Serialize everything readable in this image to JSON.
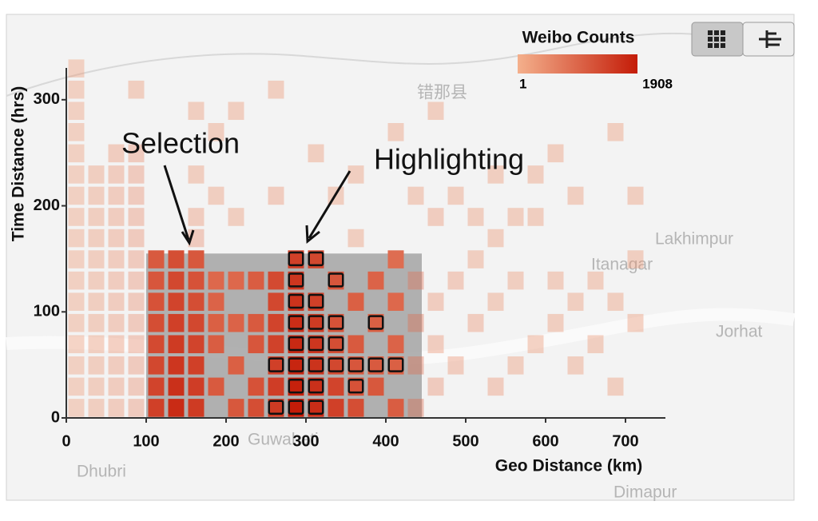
{
  "chart_data": {
    "type": "heatmap",
    "title": "Weibo Counts",
    "colorbar": {
      "min": 1,
      "max": 1908,
      "colors": [
        "#f4b08c",
        "#c41c08"
      ]
    },
    "xlabel": "Geo Distance (km)",
    "ylabel": "Time Distance (hrs)",
    "xlim": [
      0,
      750
    ],
    "xticks": [
      0,
      100,
      200,
      300,
      400,
      500,
      600,
      700
    ],
    "ylim": [
      0,
      330
    ],
    "yticks": [
      0,
      100,
      200,
      300
    ],
    "bin_size": [
      25,
      20
    ],
    "selection": {
      "x": [
        100,
        445
      ],
      "y": [
        0,
        155
      ]
    },
    "annotations": [
      "Selection",
      "Highlighting"
    ],
    "map_labels": [
      "错那县",
      "Lakhimpur",
      "Itanagar",
      "Jorhat",
      "Dhubri",
      "Guwahati",
      "Dimapur"
    ],
    "cells": [
      [
        0,
        0,
        3,
        false
      ],
      [
        0,
        20,
        3,
        false
      ],
      [
        0,
        40,
        3,
        false
      ],
      [
        0,
        60,
        3,
        false
      ],
      [
        0,
        80,
        3,
        false
      ],
      [
        0,
        100,
        3,
        false
      ],
      [
        0,
        120,
        3,
        false
      ],
      [
        0,
        140,
        3,
        false
      ],
      [
        0,
        160,
        3,
        false
      ],
      [
        0,
        180,
        3,
        false
      ],
      [
        0,
        200,
        3,
        false
      ],
      [
        0,
        220,
        3,
        false
      ],
      [
        0,
        240,
        3,
        false
      ],
      [
        0,
        260,
        3,
        false
      ],
      [
        0,
        280,
        3,
        false
      ],
      [
        0,
        300,
        3,
        false
      ],
      [
        0,
        320,
        3,
        false
      ],
      [
        25,
        0,
        4,
        false
      ],
      [
        25,
        20,
        4,
        false
      ],
      [
        25,
        40,
        4,
        false
      ],
      [
        25,
        60,
        4,
        false
      ],
      [
        25,
        80,
        4,
        false
      ],
      [
        25,
        100,
        4,
        false
      ],
      [
        25,
        120,
        4,
        false
      ],
      [
        25,
        140,
        4,
        false
      ],
      [
        25,
        160,
        4,
        false
      ],
      [
        25,
        180,
        4,
        false
      ],
      [
        25,
        200,
        4,
        false
      ],
      [
        25,
        220,
        4,
        false
      ],
      [
        50,
        0,
        5,
        false
      ],
      [
        50,
        20,
        5,
        false
      ],
      [
        50,
        40,
        5,
        false
      ],
      [
        50,
        60,
        5,
        false
      ],
      [
        50,
        80,
        5,
        false
      ],
      [
        50,
        100,
        5,
        false
      ],
      [
        50,
        120,
        5,
        false
      ],
      [
        50,
        140,
        5,
        false
      ],
      [
        50,
        160,
        5,
        false
      ],
      [
        50,
        180,
        5,
        false
      ],
      [
        50,
        200,
        5,
        false
      ],
      [
        50,
        220,
        5,
        false
      ],
      [
        50,
        240,
        5,
        false
      ],
      [
        75,
        0,
        6,
        false
      ],
      [
        75,
        20,
        6,
        false
      ],
      [
        75,
        40,
        6,
        false
      ],
      [
        75,
        60,
        6,
        false
      ],
      [
        75,
        80,
        6,
        false
      ],
      [
        75,
        100,
        6,
        false
      ],
      [
        75,
        120,
        6,
        false
      ],
      [
        75,
        140,
        6,
        false
      ],
      [
        75,
        160,
        6,
        false
      ],
      [
        75,
        180,
        6,
        false
      ],
      [
        75,
        200,
        6,
        false
      ],
      [
        75,
        220,
        6,
        false
      ],
      [
        75,
        240,
        6,
        false
      ],
      [
        75,
        300,
        4,
        false
      ],
      [
        100,
        0,
        300,
        false
      ],
      [
        100,
        20,
        250,
        false
      ],
      [
        100,
        40,
        200,
        false
      ],
      [
        100,
        60,
        180,
        false
      ],
      [
        100,
        80,
        150,
        false
      ],
      [
        100,
        100,
        120,
        false
      ],
      [
        100,
        120,
        100,
        false
      ],
      [
        100,
        140,
        80,
        false
      ],
      [
        125,
        0,
        900,
        false
      ],
      [
        125,
        20,
        700,
        false
      ],
      [
        125,
        40,
        500,
        false
      ],
      [
        125,
        60,
        400,
        false
      ],
      [
        125,
        80,
        300,
        false
      ],
      [
        125,
        100,
        250,
        false
      ],
      [
        125,
        120,
        200,
        false
      ],
      [
        125,
        140,
        150,
        false
      ],
      [
        150,
        0,
        400,
        false
      ],
      [
        150,
        20,
        350,
        false
      ],
      [
        150,
        40,
        300,
        false
      ],
      [
        150,
        60,
        250,
        false
      ],
      [
        150,
        80,
        200,
        false
      ],
      [
        150,
        100,
        150,
        false
      ],
      [
        150,
        120,
        120,
        false
      ],
      [
        150,
        140,
        90,
        false
      ],
      [
        150,
        160,
        6,
        false
      ],
      [
        150,
        180,
        5,
        false
      ],
      [
        150,
        220,
        4,
        false
      ],
      [
        150,
        280,
        4,
        false
      ],
      [
        175,
        20,
        80,
        false
      ],
      [
        175,
        60,
        70,
        false
      ],
      [
        175,
        80,
        60,
        false
      ],
      [
        175,
        100,
        50,
        false
      ],
      [
        175,
        120,
        40,
        false
      ],
      [
        175,
        200,
        4,
        false
      ],
      [
        175,
        260,
        4,
        false
      ],
      [
        200,
        0,
        90,
        false
      ],
      [
        200,
        40,
        60,
        false
      ],
      [
        200,
        80,
        50,
        false
      ],
      [
        200,
        120,
        40,
        false
      ],
      [
        200,
        180,
        4,
        false
      ],
      [
        200,
        280,
        4,
        false
      ],
      [
        225,
        0,
        150,
        false
      ],
      [
        225,
        20,
        120,
        false
      ],
      [
        225,
        60,
        100,
        false
      ],
      [
        225,
        80,
        80,
        false
      ],
      [
        225,
        120,
        70,
        false
      ],
      [
        250,
        0,
        400,
        true
      ],
      [
        250,
        20,
        350,
        false
      ],
      [
        250,
        40,
        300,
        true
      ],
      [
        250,
        60,
        280,
        false
      ],
      [
        250,
        80,
        250,
        false
      ],
      [
        250,
        100,
        200,
        false
      ],
      [
        250,
        120,
        180,
        false
      ],
      [
        250,
        200,
        5,
        false
      ],
      [
        250,
        300,
        4,
        false
      ],
      [
        275,
        0,
        1908,
        true
      ],
      [
        275,
        20,
        1500,
        true
      ],
      [
        275,
        40,
        1200,
        true
      ],
      [
        275,
        60,
        1000,
        true
      ],
      [
        275,
        80,
        800,
        true
      ],
      [
        275,
        100,
        600,
        true
      ],
      [
        275,
        120,
        500,
        true
      ],
      [
        275,
        140,
        300,
        true
      ],
      [
        300,
        0,
        800,
        true
      ],
      [
        300,
        20,
        700,
        true
      ],
      [
        300,
        40,
        600,
        true
      ],
      [
        300,
        60,
        500,
        true
      ],
      [
        300,
        80,
        400,
        true
      ],
      [
        300,
        100,
        300,
        true
      ],
      [
        300,
        140,
        200,
        true
      ],
      [
        300,
        240,
        4,
        false
      ],
      [
        325,
        0,
        300,
        false
      ],
      [
        325,
        20,
        250,
        false
      ],
      [
        325,
        40,
        200,
        true
      ],
      [
        325,
        60,
        150,
        true
      ],
      [
        325,
        80,
        120,
        true
      ],
      [
        325,
        120,
        100,
        true
      ],
      [
        325,
        200,
        4,
        false
      ],
      [
        350,
        0,
        150,
        false
      ],
      [
        350,
        20,
        120,
        true
      ],
      [
        350,
        40,
        100,
        true
      ],
      [
        350,
        60,
        80,
        false
      ],
      [
        350,
        100,
        60,
        false
      ],
      [
        350,
        160,
        4,
        false
      ],
      [
        350,
        220,
        4,
        false
      ],
      [
        375,
        20,
        90,
        false
      ],
      [
        375,
        40,
        80,
        true
      ],
      [
        375,
        80,
        60,
        true
      ],
      [
        375,
        120,
        50,
        false
      ],
      [
        400,
        0,
        70,
        false
      ],
      [
        400,
        40,
        60,
        true
      ],
      [
        400,
        60,
        50,
        false
      ],
      [
        400,
        100,
        40,
        false
      ],
      [
        400,
        140,
        30,
        false
      ],
      [
        400,
        260,
        4,
        false
      ],
      [
        425,
        0,
        40,
        false
      ],
      [
        425,
        40,
        30,
        false
      ],
      [
        425,
        80,
        30,
        false
      ],
      [
        425,
        120,
        25,
        false
      ],
      [
        425,
        200,
        4,
        false
      ],
      [
        450,
        20,
        6,
        false
      ],
      [
        450,
        60,
        5,
        false
      ],
      [
        450,
        100,
        5,
        false
      ],
      [
        450,
        180,
        5,
        false
      ],
      [
        450,
        280,
        4,
        false
      ],
      [
        475,
        40,
        5,
        false
      ],
      [
        475,
        120,
        5,
        false
      ],
      [
        475,
        200,
        4,
        false
      ],
      [
        500,
        80,
        5,
        false
      ],
      [
        500,
        140,
        4,
        false
      ],
      [
        500,
        180,
        4,
        false
      ],
      [
        525,
        20,
        5,
        false
      ],
      [
        525,
        100,
        4,
        false
      ],
      [
        525,
        160,
        4,
        false
      ],
      [
        525,
        220,
        4,
        false
      ],
      [
        550,
        40,
        4,
        false
      ],
      [
        550,
        120,
        4,
        false
      ],
      [
        550,
        180,
        4,
        false
      ],
      [
        575,
        60,
        4,
        false
      ],
      [
        575,
        180,
        4,
        false
      ],
      [
        575,
        220,
        4,
        false
      ],
      [
        600,
        80,
        4,
        false
      ],
      [
        600,
        120,
        4,
        false
      ],
      [
        600,
        240,
        4,
        false
      ],
      [
        625,
        40,
        4,
        false
      ],
      [
        625,
        100,
        4,
        false
      ],
      [
        625,
        200,
        4,
        false
      ],
      [
        650,
        120,
        4,
        false
      ],
      [
        650,
        60,
        4,
        false
      ],
      [
        675,
        20,
        4,
        false
      ],
      [
        675,
        100,
        4,
        false
      ],
      [
        675,
        260,
        4,
        false
      ],
      [
        700,
        80,
        4,
        false
      ],
      [
        700,
        140,
        4,
        false
      ],
      [
        700,
        200,
        4,
        false
      ]
    ]
  }
}
